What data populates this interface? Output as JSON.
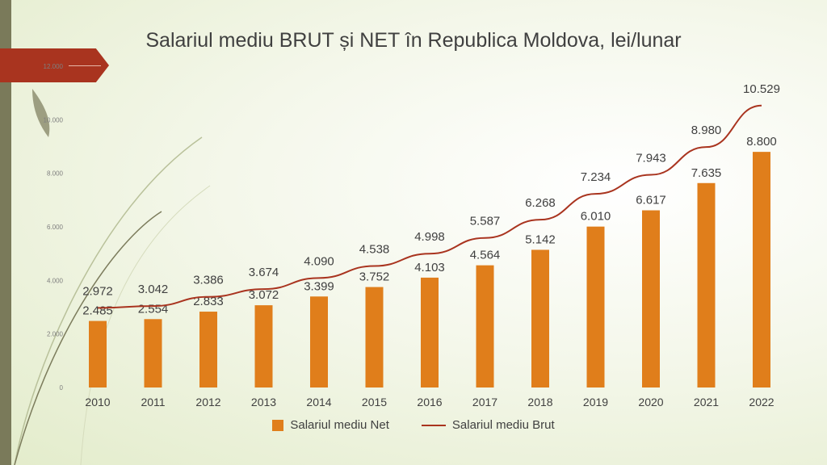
{
  "chart_data": {
    "type": "bar+line",
    "title": "Salariul mediu BRUT și NET în Republica Moldova, lei/lunar",
    "categories": [
      "2010",
      "2011",
      "2012",
      "2013",
      "2014",
      "2015",
      "2016",
      "2017",
      "2018",
      "2019",
      "2020",
      "2021",
      "2022"
    ],
    "series": [
      {
        "name": "Salariul mediu Net",
        "kind": "bar",
        "values": [
          2485,
          2554,
          2833,
          3072,
          3399,
          3752,
          4103,
          4564,
          5142,
          6010,
          6617,
          7635,
          8800
        ],
        "labels": [
          "2.485",
          "2.554",
          "2.833",
          "3.072",
          "3.399",
          "3.752",
          "4.103",
          "4.564",
          "5.142",
          "6.010",
          "6.617",
          "7.635",
          "8.800"
        ],
        "color": "#e07e1b"
      },
      {
        "name": "Salariul mediu Brut",
        "kind": "line",
        "values": [
          2972,
          3042,
          3386,
          3674,
          4090,
          4538,
          4998,
          5587,
          6268,
          7234,
          7943,
          8980,
          10529
        ],
        "labels": [
          "2.972",
          "3.042",
          "3.386",
          "3.674",
          "4.090",
          "4.538",
          "4.998",
          "5.587",
          "6.268",
          "7.234",
          "7.943",
          "8.980",
          "10.529"
        ],
        "color": "#a9341f"
      }
    ],
    "y_ticks": [
      0,
      2000,
      4000,
      6000,
      8000,
      10000,
      12000
    ],
    "y_tick_labels": [
      "0",
      "2.000",
      "4.000",
      "6.000",
      "8.000",
      "10.000",
      "12.000"
    ],
    "ylim": [
      0,
      12000
    ],
    "legend_position": "bottom",
    "grid": false
  }
}
